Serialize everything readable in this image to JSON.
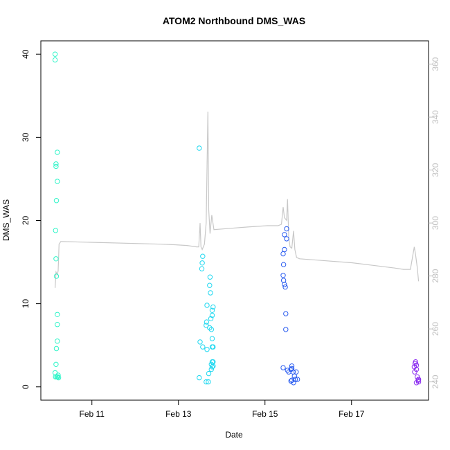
{
  "chart_data": {
    "type": "scatter",
    "title": "ATOM2 Northbound DMS_WAS",
    "xlabel": "Date",
    "ylabel": "DMS_WAS",
    "y2label": "",
    "xlim": [
      -0.18,
      8.78
    ],
    "ylim": [
      -1.6,
      41.6
    ],
    "y2lim": [
      233.1,
      368.8
    ],
    "x_ticks": [
      {
        "value": 1.0,
        "label": "Feb 11"
      },
      {
        "value": 3.0,
        "label": "Feb 13"
      },
      {
        "value": 5.0,
        "label": "Feb 15"
      },
      {
        "value": 7.0,
        "label": "Feb 17"
      }
    ],
    "y_ticks": [
      0,
      10,
      20,
      30,
      40
    ],
    "y2_ticks": [
      240,
      260,
      280,
      300,
      320,
      340,
      360
    ],
    "grid": false,
    "legend": "none",
    "line_color": "#c8c8c8",
    "series": [
      {
        "color": "#2ef5c8",
        "x": [
          0.15,
          0.15,
          0.17,
          0.17,
          0.2,
          0.2,
          0.18,
          0.16,
          0.17,
          0.18,
          0.2,
          0.2,
          0.2,
          0.18,
          0.17,
          0.15,
          0.22,
          0.19,
          0.21,
          0.23,
          0.16
        ],
        "y": [
          40.0,
          39.3,
          26.8,
          26.5,
          28.2,
          24.7,
          22.4,
          18.8,
          15.4,
          13.3,
          8.7,
          7.5,
          5.5,
          4.6,
          2.7,
          1.7,
          1.4,
          1.2,
          1.2,
          1.1,
          1.2
        ]
      },
      {
        "color": "#1ed8f0",
        "x": [
          3.48,
          3.56,
          3.55,
          3.54,
          3.73,
          3.72,
          3.74,
          3.66,
          3.8,
          3.78,
          3.78,
          3.75,
          3.65,
          3.64,
          3.72,
          3.76,
          3.78,
          3.5,
          3.8,
          3.78,
          3.56,
          3.66,
          3.78,
          3.8,
          3.76,
          3.8,
          3.78,
          3.76,
          3.7,
          3.48,
          3.64,
          3.69
        ],
        "y": [
          28.7,
          15.7,
          14.9,
          14.2,
          13.2,
          12.2,
          11.3,
          9.8,
          9.6,
          9.2,
          8.6,
          8.2,
          7.8,
          7.4,
          7.1,
          6.9,
          5.8,
          5.4,
          4.8,
          4.8,
          4.8,
          4.5,
          3.0,
          3.0,
          2.7,
          2.5,
          2.4,
          2.1,
          1.6,
          1.1,
          0.6,
          0.6
        ]
      },
      {
        "color": "#2a5cf0",
        "x": [
          5.5,
          5.45,
          5.5,
          5.45,
          5.42,
          5.43,
          5.42,
          5.43,
          5.45,
          5.47,
          5.48,
          5.48,
          5.42,
          5.62,
          5.6,
          5.52,
          5.62,
          5.55,
          5.65,
          5.72,
          5.75,
          5.68,
          5.62,
          5.7,
          5.6,
          5.66
        ],
        "y": [
          19.0,
          18.3,
          17.8,
          16.5,
          16.0,
          14.7,
          13.4,
          12.8,
          12.3,
          12.0,
          8.8,
          6.9,
          2.3,
          2.2,
          2.1,
          2.0,
          2.5,
          1.8,
          1.8,
          1.8,
          0.9,
          1.3,
          0.8,
          0.9,
          0.7,
          0.5
        ]
      },
      {
        "color": "#8a2bf0",
        "x": [
          8.48,
          8.47,
          8.5,
          8.45,
          8.5,
          8.46,
          8.52,
          8.55,
          8.54,
          8.55,
          8.5
        ],
        "y": [
          3.0,
          2.8,
          2.6,
          2.4,
          2.1,
          1.8,
          1.2,
          0.9,
          0.8,
          0.6,
          0.5
        ]
      }
    ],
    "line_series": {
      "axis": "right",
      "x": [
        0.15,
        0.17,
        0.2,
        0.22,
        0.24,
        0.28,
        0.3,
        2.6,
        2.9,
        3.2,
        3.42,
        3.47,
        3.5,
        3.52,
        3.55,
        3.6,
        3.64,
        3.68,
        3.7,
        3.73,
        3.77,
        3.82,
        4.2,
        4.6,
        5.05,
        5.3,
        5.38,
        5.42,
        5.45,
        5.5,
        5.52,
        5.55,
        5.58,
        5.62,
        5.66,
        5.69,
        5.73,
        5.8,
        6.2,
        7.0,
        7.5,
        8.0,
        8.2,
        8.36,
        8.45,
        8.48,
        8.52,
        8.55
      ],
      "y": [
        275.5,
        281.5,
        280.5,
        282.0,
        292.0,
        293.0,
        293.0,
        292.0,
        291.8,
        291.5,
        291.0,
        291.0,
        300.0,
        291.0,
        290.0,
        292.0,
        300.0,
        342.0,
        305.0,
        296.0,
        303.0,
        297.5,
        298.0,
        298.5,
        299.0,
        299.0,
        299.5,
        306.0,
        302.0,
        301.0,
        309.0,
        294.5,
        291.0,
        290.5,
        297.0,
        290.0,
        287.0,
        286.5,
        286.0,
        285.0,
        284.0,
        283.0,
        282.5,
        282.5,
        291.0,
        288.0,
        283.0,
        278.0
      ]
    }
  }
}
